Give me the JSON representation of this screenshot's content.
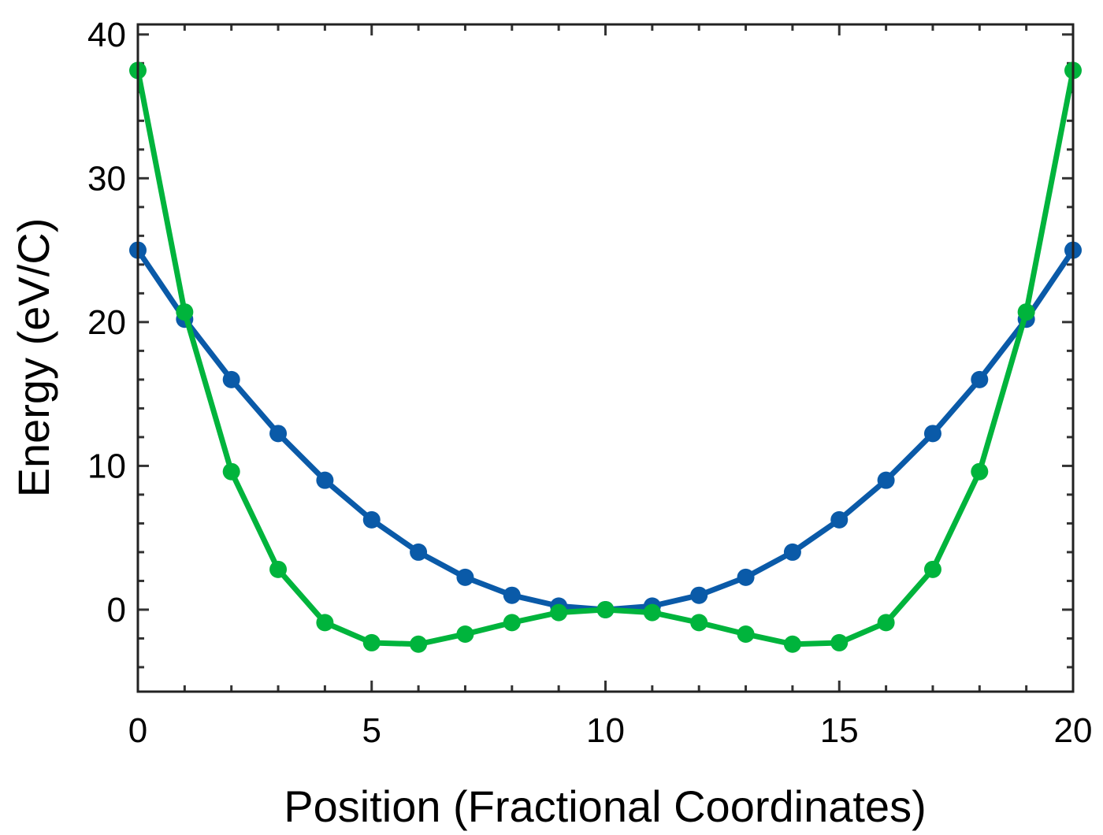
{
  "chart_data": {
    "type": "line",
    "xlabel": "Position  (Fractional  Coordinates)",
    "ylabel": "Energy  (eV/C)",
    "xlim": [
      0,
      20
    ],
    "ylim": [
      -5.7,
      40.7
    ],
    "x_ticks": [
      0,
      5,
      10,
      15,
      20
    ],
    "x_tick_labels": [
      "0",
      "5",
      "10",
      "15",
      "20"
    ],
    "y_ticks": [
      0,
      10,
      20,
      30,
      40
    ],
    "y_tick_labels": [
      "0",
      "10",
      "20",
      "30",
      "40"
    ],
    "x_minor_step": 1,
    "y_minor_step": 2,
    "grid": false,
    "legend": "none",
    "x": [
      0,
      1,
      2,
      3,
      4,
      5,
      6,
      7,
      8,
      9,
      10,
      11,
      12,
      13,
      14,
      15,
      16,
      17,
      18,
      19,
      20
    ],
    "series": [
      {
        "color": "#0a5aa8",
        "values": [
          25.0,
          20.2,
          16.0,
          12.25,
          9.0,
          6.25,
          4.0,
          2.25,
          1.0,
          0.25,
          0.0,
          0.25,
          1.0,
          2.25,
          4.0,
          6.25,
          9.0,
          12.25,
          16.0,
          20.2,
          25.0
        ]
      },
      {
        "color": "#00b43c",
        "values": [
          37.5,
          20.7,
          9.6,
          2.8,
          -0.9,
          -2.3,
          -2.4,
          -1.7,
          -0.9,
          -0.2,
          0.0,
          -0.2,
          -0.9,
          -1.7,
          -2.4,
          -2.3,
          -0.9,
          2.8,
          9.6,
          20.7,
          37.5
        ]
      }
    ]
  }
}
